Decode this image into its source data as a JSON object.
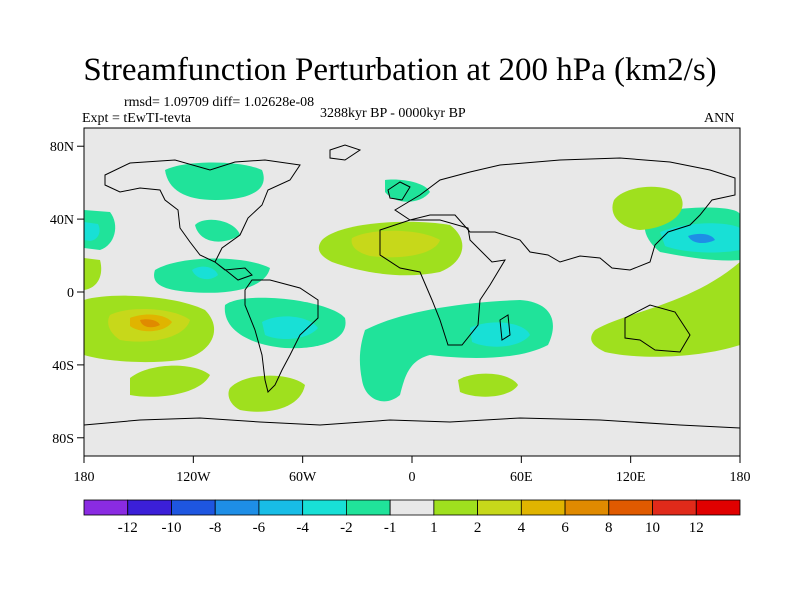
{
  "title": "Streamfunction Perturbation at 200 hPa (km2/s)",
  "stats_text": "rmsd= 1.09709 diff= 1.02628e-08",
  "experiment_text": "Expt = tEwTI-tevta",
  "period_text": "3288kyr BP - 0000kyr BP",
  "season": "ANN",
  "lat_ticks": [
    "80N",
    "40N",
    "0",
    "40S",
    "80S"
  ],
  "lon_ticks": [
    "180",
    "120W",
    "60W",
    "0",
    "60E",
    "120E",
    "180"
  ],
  "colorbar": {
    "labels": [
      "-12",
      "-10",
      "-8",
      "-6",
      "-4",
      "-2",
      "-1",
      "1",
      "2",
      "4",
      "6",
      "8",
      "10",
      "12"
    ],
    "colors": [
      "#8a2be2",
      "#3b1fd8",
      "#1e56e0",
      "#1e8ee6",
      "#18bde6",
      "#18e0d6",
      "#20e39a",
      "#e8e8e8",
      "#9fe01e",
      "#c7d81a",
      "#e0b400",
      "#e08a00",
      "#e05a00",
      "#e02a1a",
      "#e00000"
    ]
  },
  "colors": {
    "background": "#ffffff",
    "ocean": "#e8e8e8",
    "coast": "#000000"
  }
}
